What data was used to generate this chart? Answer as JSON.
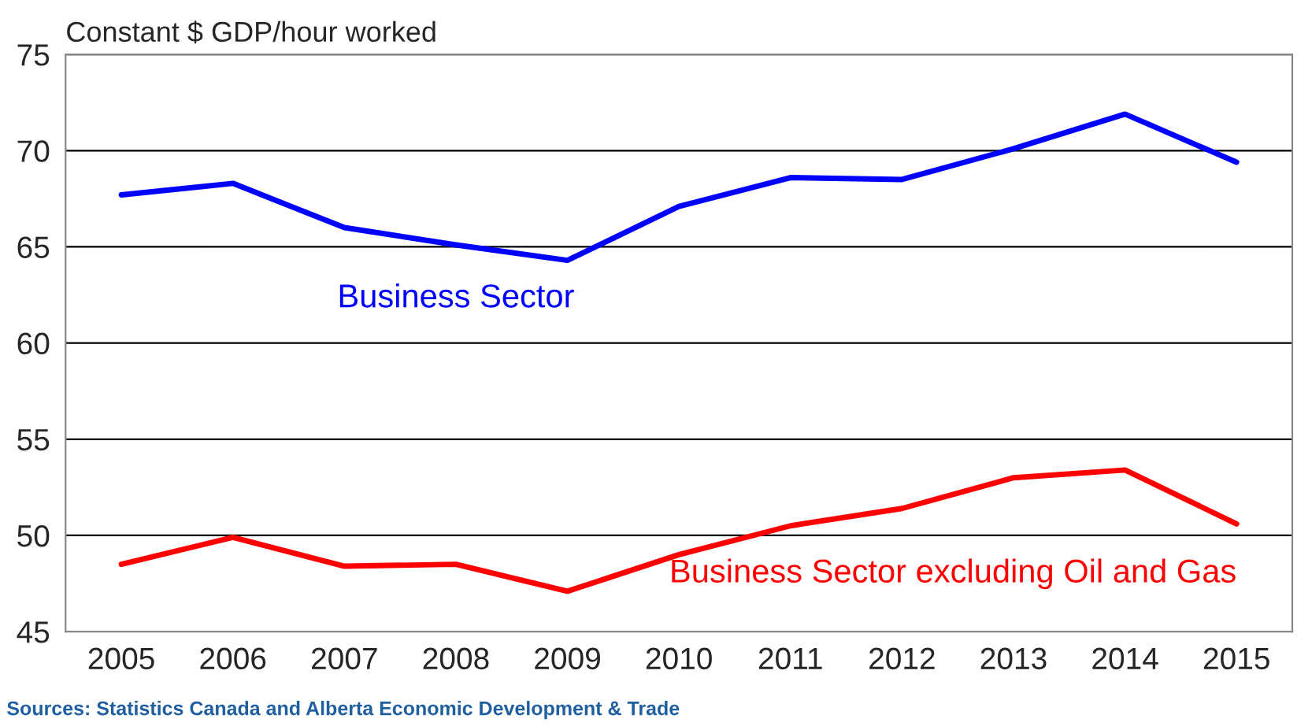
{
  "chart_data": {
    "type": "line",
    "ylabel": "Constant $ GDP/hour worked",
    "categories": [
      "2005",
      "2006",
      "2007",
      "2008",
      "2009",
      "2010",
      "2011",
      "2012",
      "2013",
      "2014",
      "2015"
    ],
    "series": [
      {
        "name": "Business Sector",
        "color": "#0000ff",
        "values": [
          67.7,
          68.3,
          66.0,
          65.1,
          64.3,
          67.1,
          68.6,
          68.5,
          70.1,
          71.9,
          69.4
        ]
      },
      {
        "name": "Business Sector excluding Oil and Gas",
        "color": "#ff0000",
        "values": [
          48.5,
          49.9,
          48.4,
          48.5,
          47.1,
          49.0,
          50.5,
          51.4,
          53.0,
          53.4,
          50.6
        ]
      }
    ],
    "ylim": [
      45,
      75
    ],
    "yticks": [
      45,
      50,
      55,
      60,
      65,
      70,
      75
    ],
    "grid": "y",
    "legend": false,
    "marker": "none",
    "line_style": "solid",
    "annotations": [
      "Sources: Statistics Canada and Alberta Economic Development & Trade"
    ]
  }
}
